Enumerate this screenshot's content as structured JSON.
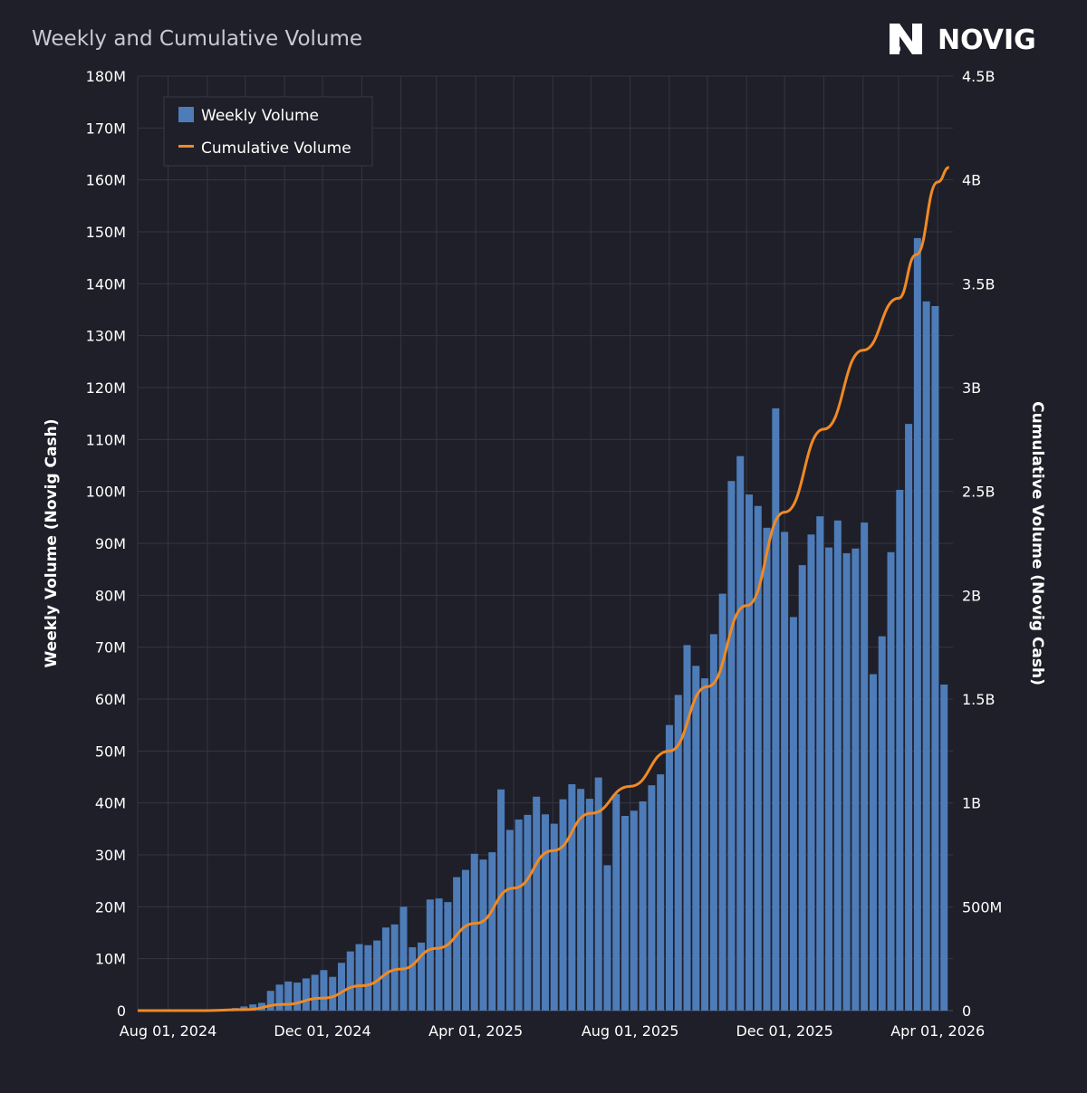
{
  "brand": {
    "name": "NOVIG",
    "icon": "novig-logo-icon"
  },
  "colors": {
    "background": "#1f1f29",
    "grid": "#363645",
    "bar": "#4d7cb8",
    "line": "#f08a24",
    "text": "#ffffff",
    "title": "#c9c9d3"
  },
  "chart_data": {
    "type": "bar",
    "title": "Weekly and Cumulative Volume",
    "ylabel": "Weekly Volume (Novig Cash)",
    "y2label": "Cumulative Volume (Novig Cash)",
    "legend_placement": "top-left",
    "grid": true,
    "xlim": [
      "2024-07-08",
      "2026-04-13"
    ],
    "ylim": [
      0,
      180000000
    ],
    "y2lim": [
      0,
      4500000000
    ],
    "x_ticks": [
      {
        "date": "2024-08-01",
        "label": "Aug 01, 2024"
      },
      {
        "date": "2024-12-01",
        "label": "Dec 01, 2024"
      },
      {
        "date": "2025-04-01",
        "label": "Apr 01, 2025"
      },
      {
        "date": "2025-08-01",
        "label": "Aug 01, 2025"
      },
      {
        "date": "2025-12-01",
        "label": "Dec 01, 2025"
      },
      {
        "date": "2026-04-01",
        "label": "Apr 01, 2026"
      }
    ],
    "y_ticks": [
      {
        "value": 0,
        "label": "0"
      },
      {
        "value": 10000000,
        "label": "10M"
      },
      {
        "value": 20000000,
        "label": "20M"
      },
      {
        "value": 30000000,
        "label": "30M"
      },
      {
        "value": 40000000,
        "label": "40M"
      },
      {
        "value": 50000000,
        "label": "50M"
      },
      {
        "value": 60000000,
        "label": "60M"
      },
      {
        "value": 70000000,
        "label": "70M"
      },
      {
        "value": 80000000,
        "label": "80M"
      },
      {
        "value": 90000000,
        "label": "90M"
      },
      {
        "value": 100000000,
        "label": "100M"
      },
      {
        "value": 110000000,
        "label": "110M"
      },
      {
        "value": 120000000,
        "label": "120M"
      },
      {
        "value": 130000000,
        "label": "130M"
      },
      {
        "value": 140000000,
        "label": "140M"
      },
      {
        "value": 150000000,
        "label": "150M"
      },
      {
        "value": 160000000,
        "label": "160M"
      },
      {
        "value": 170000000,
        "label": "170M"
      },
      {
        "value": 180000000,
        "label": "180M"
      }
    ],
    "y2_ticks": [
      {
        "value": 0,
        "label": "0"
      },
      {
        "value": 500000000,
        "label": "500M"
      },
      {
        "value": 1000000000,
        "label": "1B"
      },
      {
        "value": 1500000000,
        "label": "1.5B"
      },
      {
        "value": 2000000000,
        "label": "2B"
      },
      {
        "value": 2500000000,
        "label": "2.5B"
      },
      {
        "value": 3000000000,
        "label": "3B"
      },
      {
        "value": 3500000000,
        "label": "3.5B"
      },
      {
        "value": 4000000000,
        "label": "4B"
      },
      {
        "value": 4500000000,
        "label": "4.5B"
      }
    ],
    "series": [
      {
        "name": "Weekly Volume",
        "type": "bar",
        "axis": "left",
        "x": [
          "2024-07-15",
          "2024-07-22",
          "2024-07-29",
          "2024-08-05",
          "2024-08-12",
          "2024-08-19",
          "2024-08-26",
          "2024-09-02",
          "2024-09-09",
          "2024-09-16",
          "2024-09-23",
          "2024-09-30",
          "2024-10-07",
          "2024-10-14",
          "2024-10-21",
          "2024-10-28",
          "2024-11-04",
          "2024-11-11",
          "2024-11-18",
          "2024-11-25",
          "2024-12-02",
          "2024-12-09",
          "2024-12-16",
          "2024-12-23",
          "2024-12-30",
          "2025-01-06",
          "2025-01-13",
          "2025-01-20",
          "2025-01-27",
          "2025-02-03",
          "2025-02-10",
          "2025-02-17",
          "2025-02-24",
          "2025-03-03",
          "2025-03-10",
          "2025-03-17",
          "2025-03-24",
          "2025-03-31",
          "2025-04-07",
          "2025-04-14",
          "2025-04-21",
          "2025-04-28",
          "2025-05-05",
          "2025-05-12",
          "2025-05-19",
          "2025-05-26",
          "2025-06-02",
          "2025-06-09",
          "2025-06-16",
          "2025-06-23",
          "2025-06-30",
          "2025-07-07",
          "2025-07-14",
          "2025-07-21",
          "2025-07-28",
          "2025-08-04",
          "2025-08-11",
          "2025-08-18",
          "2025-08-25",
          "2025-09-01",
          "2025-09-08",
          "2025-09-15",
          "2025-09-22",
          "2025-09-29",
          "2025-10-06",
          "2025-10-13",
          "2025-10-20",
          "2025-10-27",
          "2025-11-03",
          "2025-11-10",
          "2025-11-17",
          "2025-11-24",
          "2025-12-01",
          "2025-12-08",
          "2025-12-15",
          "2025-12-22",
          "2025-12-29",
          "2026-01-05",
          "2026-01-12",
          "2026-01-19",
          "2026-01-26",
          "2026-02-02",
          "2026-02-09",
          "2026-02-16",
          "2026-02-23",
          "2026-03-02",
          "2026-03-09",
          "2026-03-16",
          "2026-03-23",
          "2026-03-30",
          "2026-04-06"
        ],
        "values": [
          0,
          0,
          0,
          0,
          0,
          0,
          0,
          100000,
          200000,
          300000,
          500000,
          800000,
          1200000,
          1500000,
          3800000,
          5000000,
          5600000,
          5400000,
          6200000,
          6900000,
          7800000,
          6500000,
          9200000,
          11400000,
          12800000,
          12600000,
          13500000,
          16000000,
          16600000,
          20000000,
          12200000,
          13100000,
          21400000,
          21600000,
          20900000,
          25700000,
          27100000,
          30200000,
          29100000,
          30500000,
          42600000,
          34800000,
          36800000,
          37700000,
          41200000,
          37800000,
          36000000,
          40700000,
          43600000,
          42700000,
          40800000,
          44900000,
          28000000,
          41700000,
          37500000,
          38500000,
          40300000,
          43400000,
          45500000,
          55000000,
          60800000,
          70400000,
          66400000,
          64000000,
          72500000,
          80300000,
          102000000,
          106800000,
          99400000,
          97200000,
          93000000,
          116000000,
          92200000,
          75800000,
          85800000,
          91700000,
          95200000,
          89200000,
          94400000,
          88100000,
          89000000,
          94000000,
          64800000,
          72100000,
          88300000,
          100300000,
          113000000,
          148800000,
          136600000,
          135700000,
          62800000
        ]
      },
      {
        "name": "Cumulative Volume",
        "type": "line",
        "axis": "right",
        "x": [
          "2024-07-08",
          "2024-08-01",
          "2024-09-01",
          "2024-10-01",
          "2024-11-01",
          "2024-12-01",
          "2025-01-01",
          "2025-02-01",
          "2025-03-01",
          "2025-04-01",
          "2025-05-01",
          "2025-06-01",
          "2025-07-01",
          "2025-08-01",
          "2025-09-01",
          "2025-10-01",
          "2025-11-01",
          "2025-12-01",
          "2026-01-01",
          "2026-02-01",
          "2026-03-01",
          "2026-03-15",
          "2026-04-01",
          "2026-04-10"
        ],
        "values": [
          0,
          0,
          0,
          5000000,
          30000000,
          60000000,
          120000000,
          200000000,
          300000000,
          420000000,
          590000000,
          770000000,
          950000000,
          1080000000,
          1250000000,
          1560000000,
          1950000000,
          2400000000,
          2800000000,
          3180000000,
          3430000000,
          3640000000,
          3990000000,
          4060000000
        ]
      }
    ]
  }
}
